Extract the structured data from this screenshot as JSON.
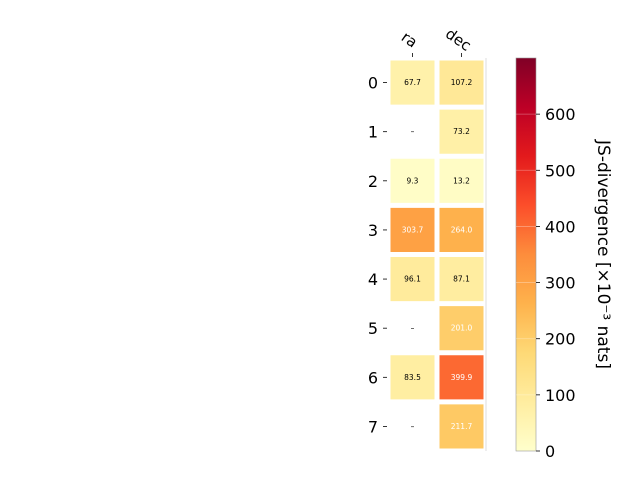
{
  "chart_data": {
    "type": "heatmap",
    "columns": [
      "ra",
      "dec"
    ],
    "rows": [
      "0",
      "1",
      "2",
      "3",
      "4",
      "5",
      "6",
      "7"
    ],
    "values": [
      [
        67.7,
        107.2
      ],
      [
        null,
        73.2
      ],
      [
        9.3,
        13.2
      ],
      [
        303.7,
        264.0
      ],
      [
        96.1,
        87.1
      ],
      [
        null,
        201.0
      ],
      [
        83.5,
        399.9
      ],
      [
        null,
        211.7
      ]
    ],
    "cell_labels": [
      [
        "67.7",
        "107.2"
      ],
      [
        "–",
        "73.2"
      ],
      [
        "9.3",
        "13.2"
      ],
      [
        "303.7",
        "264.0"
      ],
      [
        "96.1",
        "87.1"
      ],
      [
        "–",
        "201.0"
      ],
      [
        "83.5",
        "399.9"
      ],
      [
        "–",
        "211.7"
      ]
    ],
    "colormap": "YlOrRd",
    "color_range": [
      0,
      700
    ],
    "colorbar": {
      "label": "JS-divergence [×10⁻³ nats]",
      "ticks": [
        0,
        100,
        200,
        300,
        400,
        500,
        600
      ],
      "tick_labels": [
        "0",
        "100",
        "200",
        "300",
        "400",
        "500",
        "600"
      ]
    },
    "label_color_dark": "#000000",
    "label_color_light": "#ffffff"
  }
}
